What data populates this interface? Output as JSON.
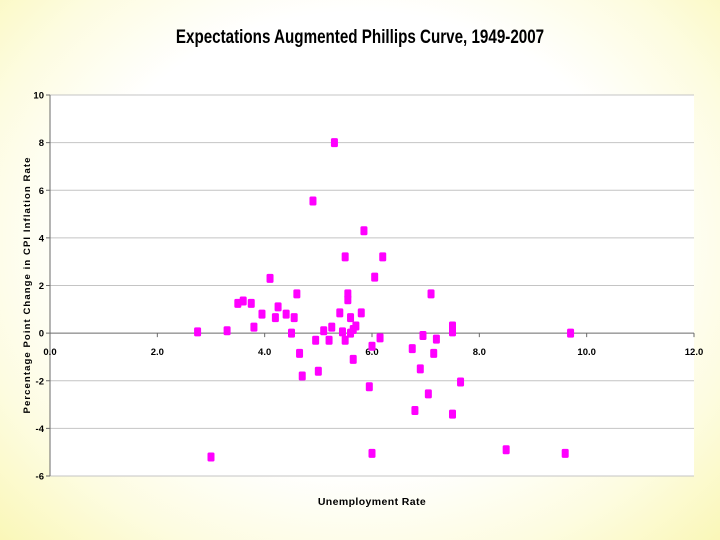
{
  "chart_data": {
    "type": "scatter",
    "title": "Expectations Augmented Phillips Curve, 1949-2007",
    "xlabel": "Unemployment Rate",
    "ylabel": "Percentage Point Change in CPI Inflation Rate",
    "xlim": [
      0,
      12
    ],
    "ylim": [
      -6,
      10
    ],
    "xticks": [
      "0.0",
      "2.0",
      "4.0",
      "6.0",
      "8.0",
      "10.0",
      "12.0"
    ],
    "xtick_values": [
      0,
      2,
      4,
      6,
      8,
      10,
      12
    ],
    "yticks": [
      "10",
      "8",
      "6",
      "4",
      "2",
      "0",
      "-2",
      "-4",
      "-6"
    ],
    "ytick_values": [
      10,
      8,
      6,
      4,
      2,
      0,
      -2,
      -4,
      -6
    ],
    "grid": true,
    "legend": "none",
    "marker_color": "#ff00ff",
    "points": [
      {
        "x": 2.75,
        "y": 0.05
      },
      {
        "x": 3.0,
        "y": -5.2
      },
      {
        "x": 3.3,
        "y": 0.1
      },
      {
        "x": 3.5,
        "y": 1.25
      },
      {
        "x": 3.6,
        "y": 1.35
      },
      {
        "x": 3.75,
        "y": 1.25
      },
      {
        "x": 3.8,
        "y": 0.25
      },
      {
        "x": 3.95,
        "y": 0.8
      },
      {
        "x": 4.1,
        "y": 2.3
      },
      {
        "x": 4.2,
        "y": 0.65
      },
      {
        "x": 4.25,
        "y": 1.1
      },
      {
        "x": 4.4,
        "y": 0.8
      },
      {
        "x": 4.5,
        "y": 0.0
      },
      {
        "x": 4.55,
        "y": 0.65
      },
      {
        "x": 4.6,
        "y": 1.65
      },
      {
        "x": 4.65,
        "y": -0.85
      },
      {
        "x": 4.7,
        "y": -1.8
      },
      {
        "x": 4.9,
        "y": 5.55
      },
      {
        "x": 4.95,
        "y": -0.3
      },
      {
        "x": 5.0,
        "y": -1.6
      },
      {
        "x": 5.1,
        "y": 0.1
      },
      {
        "x": 5.2,
        "y": -0.3
      },
      {
        "x": 5.25,
        "y": 0.25
      },
      {
        "x": 5.3,
        "y": 8.0
      },
      {
        "x": 5.4,
        "y": 0.85
      },
      {
        "x": 5.45,
        "y": 0.05
      },
      {
        "x": 5.5,
        "y": -0.3
      },
      {
        "x": 5.5,
        "y": 3.2
      },
      {
        "x": 5.55,
        "y": 1.65
      },
      {
        "x": 5.55,
        "y": 1.4
      },
      {
        "x": 5.6,
        "y": 0.65
      },
      {
        "x": 5.6,
        "y": 0.0
      },
      {
        "x": 5.65,
        "y": 0.15
      },
      {
        "x": 5.65,
        "y": -1.1
      },
      {
        "x": 5.7,
        "y": 0.3
      },
      {
        "x": 5.8,
        "y": 0.85
      },
      {
        "x": 5.85,
        "y": 4.3
      },
      {
        "x": 5.95,
        "y": -2.25
      },
      {
        "x": 6.0,
        "y": -0.55
      },
      {
        "x": 6.0,
        "y": -5.05
      },
      {
        "x": 6.05,
        "y": 2.35
      },
      {
        "x": 6.15,
        "y": -0.2
      },
      {
        "x": 6.2,
        "y": 3.2
      },
      {
        "x": 6.75,
        "y": -0.65
      },
      {
        "x": 6.8,
        "y": -3.25
      },
      {
        "x": 6.9,
        "y": -1.5
      },
      {
        "x": 6.95,
        "y": -0.1
      },
      {
        "x": 7.05,
        "y": -2.55
      },
      {
        "x": 7.1,
        "y": 1.65
      },
      {
        "x": 7.15,
        "y": -0.85
      },
      {
        "x": 7.2,
        "y": -0.25
      },
      {
        "x": 7.5,
        "y": 0.05
      },
      {
        "x": 7.5,
        "y": 0.3
      },
      {
        "x": 7.5,
        "y": -3.4
      },
      {
        "x": 7.65,
        "y": -2.05
      },
      {
        "x": 8.5,
        "y": -4.9
      },
      {
        "x": 9.6,
        "y": -5.05
      },
      {
        "x": 9.7,
        "y": 0.0
      }
    ]
  }
}
